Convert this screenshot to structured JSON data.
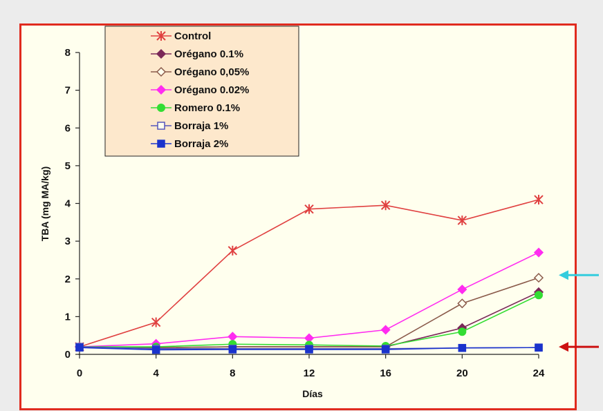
{
  "chart_data": {
    "type": "line",
    "title": "",
    "xlabel": "Días",
    "ylabel": "TBA (mg MA/kg)",
    "x": [
      0,
      4,
      8,
      12,
      16,
      20,
      24
    ],
    "xlim": [
      0,
      24
    ],
    "ylim": [
      0,
      8
    ],
    "xticks": [
      "0",
      "4",
      "8",
      "12",
      "16",
      "20",
      "24"
    ],
    "yticks": [
      "0",
      "1",
      "2",
      "3",
      "4",
      "5",
      "6",
      "7",
      "8"
    ],
    "grid": false,
    "legend_position": "top-left",
    "series": [
      {
        "name": "Control",
        "values": [
          0.2,
          0.85,
          2.75,
          3.85,
          3.95,
          3.55,
          4.1
        ],
        "color": "#e04040",
        "marker": "star"
      },
      {
        "name": "Orégano 0.1%",
        "values": [
          0.2,
          0.18,
          0.2,
          0.2,
          0.2,
          0.7,
          1.65
        ],
        "color": "#7a2858",
        "marker": "diamond-filled"
      },
      {
        "name": "Orégano 0,05%",
        "values": [
          0.2,
          0.18,
          0.2,
          0.2,
          0.2,
          1.35,
          2.03
        ],
        "color": "#8a5a4a",
        "marker": "diamond-open"
      },
      {
        "name": "Orégano 0.02%",
        "values": [
          0.2,
          0.28,
          0.47,
          0.43,
          0.65,
          1.72,
          2.7
        ],
        "color": "#ff2cf0",
        "marker": "diamond-filled"
      },
      {
        "name": "Romero 0.1%",
        "values": [
          0.2,
          0.2,
          0.27,
          0.25,
          0.22,
          0.6,
          1.57
        ],
        "color": "#33dd33",
        "marker": "circle"
      },
      {
        "name": "Borraja 1%",
        "values": [
          0.2,
          0.15,
          0.15,
          0.15,
          0.15,
          0.17,
          0.18
        ],
        "color": "#5555bb",
        "marker": "square-open"
      },
      {
        "name": "Borraja 2%",
        "values": [
          0.18,
          0.12,
          0.13,
          0.13,
          0.13,
          0.17,
          0.18
        ],
        "color": "#1a33cc",
        "marker": "square-filled"
      }
    ],
    "annotations": [
      {
        "kind": "arrow",
        "pointing": "left",
        "color": "#33ccdd",
        "at_y": 2.1
      },
      {
        "kind": "arrow",
        "pointing": "left",
        "color": "#cc1111",
        "at_y": 0.2
      }
    ]
  }
}
